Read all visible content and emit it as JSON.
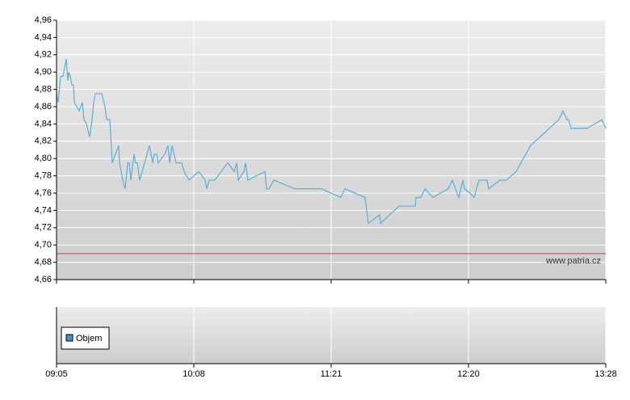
{
  "chart_data": [
    {
      "type": "line",
      "annotation": "www.patria.cz",
      "xlim": [
        0,
        680
      ],
      "xticks": [
        {
          "value": 0,
          "label": "09:05"
        },
        {
          "value": 170,
          "label": "10:08"
        },
        {
          "value": 340,
          "label": "11:21"
        },
        {
          "value": 510,
          "label": "12:20"
        },
        {
          "value": 680,
          "label": "13:28"
        }
      ],
      "ylim": [
        4.66,
        4.96
      ],
      "yticks": [
        {
          "value": 4.66,
          "label": "4,66"
        },
        {
          "value": 4.68,
          "label": "4,68"
        },
        {
          "value": 4.7,
          "label": "4,70"
        },
        {
          "value": 4.72,
          "label": "4,72"
        },
        {
          "value": 4.74,
          "label": "4,74"
        },
        {
          "value": 4.76,
          "label": "4,76"
        },
        {
          "value": 4.78,
          "label": "4,78"
        },
        {
          "value": 4.8,
          "label": "4,80"
        },
        {
          "value": 4.82,
          "label": "4,82"
        },
        {
          "value": 4.84,
          "label": "4,84"
        },
        {
          "value": 4.86,
          "label": "4,86"
        },
        {
          "value": 4.88,
          "label": "4,88"
        },
        {
          "value": 4.9,
          "label": "4,90"
        },
        {
          "value": 4.92,
          "label": "4,92"
        },
        {
          "value": 4.94,
          "label": "4,94"
        },
        {
          "value": 4.96,
          "label": "4,96"
        }
      ],
      "grid": true,
      "reference_line": {
        "value": 4.69,
        "color": "#e03a3a"
      },
      "x": [
        0,
        2,
        5,
        8,
        12,
        14,
        15,
        17,
        19,
        21,
        22,
        28,
        32,
        34,
        37,
        41,
        44,
        46,
        48,
        56,
        60,
        62,
        66,
        69,
        77,
        78,
        82,
        85,
        88,
        90,
        92,
        96,
        98,
        100,
        103,
        115,
        119,
        121,
        124,
        126,
        134,
        138,
        140,
        143,
        148,
        155,
        158,
        164,
        176,
        184,
        186,
        189,
        196,
        212,
        220,
        223,
        225,
        232,
        234,
        237,
        258,
        260,
        263,
        269,
        295,
        328,
        352,
        357,
        382,
        386,
        400,
        401,
        424,
        444,
        445,
        451,
        456,
        466,
        485,
        490,
        498,
        503,
        505,
        512,
        517,
        523,
        533,
        535,
        549,
        557,
        569,
        587,
        622,
        627,
        632,
        634,
        637,
        657,
        675,
        680
      ],
      "series": [
        {
          "color": "#5aaed6",
          "values": [
            4.875,
            4.865,
            4.895,
            4.895,
            4.915,
            4.89,
            4.9,
            4.895,
            4.885,
            4.885,
            4.865,
            4.855,
            4.865,
            4.845,
            4.84,
            4.825,
            4.845,
            4.865,
            4.875,
            4.875,
            4.86,
            4.845,
            4.845,
            4.795,
            4.815,
            4.795,
            4.775,
            4.765,
            4.795,
            4.795,
            4.775,
            4.805,
            4.795,
            4.795,
            4.775,
            4.815,
            4.795,
            4.805,
            4.805,
            4.795,
            4.805,
            4.815,
            4.795,
            4.815,
            4.795,
            4.795,
            4.785,
            4.775,
            4.785,
            4.775,
            4.765,
            4.775,
            4.775,
            4.795,
            4.785,
            4.795,
            4.775,
            4.785,
            4.795,
            4.775,
            4.785,
            4.765,
            4.765,
            4.775,
            4.765,
            4.765,
            4.755,
            4.765,
            4.755,
            4.725,
            4.735,
            4.725,
            4.745,
            4.745,
            4.755,
            4.755,
            4.765,
            4.755,
            4.765,
            4.775,
            4.755,
            4.775,
            4.765,
            4.76,
            4.755,
            4.775,
            4.775,
            4.765,
            4.775,
            4.775,
            4.785,
            4.815,
            4.845,
            4.855,
            4.845,
            4.845,
            4.835,
            4.835,
            4.845,
            4.835
          ]
        }
      ]
    },
    {
      "type": "bar",
      "series": [
        {
          "name": "Objem",
          "color": "#4a90c8",
          "values": []
        }
      ]
    }
  ]
}
